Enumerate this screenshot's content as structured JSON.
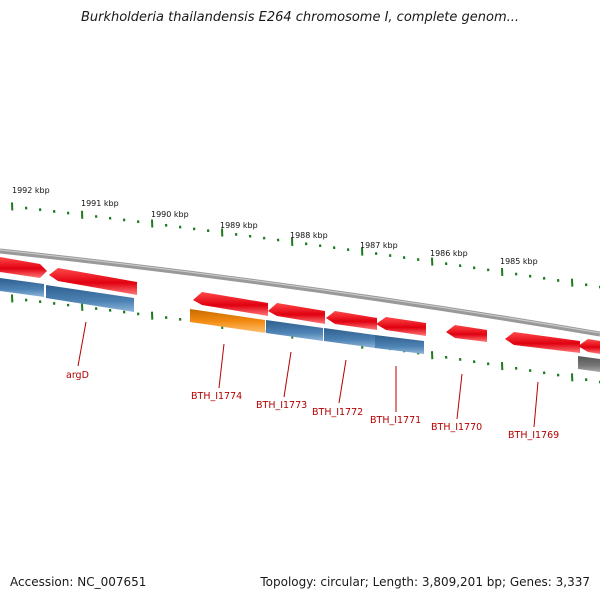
{
  "title": "Burkholderia thailandensis E264 chromosome I, complete genom...",
  "footer": {
    "accession": "Accession: NC_007651",
    "stats": "Topology: circular; Length: 3,809,201 bp; Genes: 3,337"
  },
  "colors": {
    "backbone": "#8a8a8a",
    "forward_gene": "#e8101a",
    "reverse_gene": "#4a7fb0",
    "highlighted_gene": "#f08a12",
    "gray_gene": "#6b6b6b",
    "tick": "#1d7a1d",
    "label": "#b30000"
  },
  "ticks": [
    {
      "label": "1992 kbp"
    },
    {
      "label": "1991 kbp"
    },
    {
      "label": "1990 kbp"
    },
    {
      "label": "1989 kbp"
    },
    {
      "label": "1988 kbp"
    },
    {
      "label": "1987 kbp"
    },
    {
      "label": "1986 kbp"
    },
    {
      "label": "1985 kbp"
    }
  ],
  "gene_labels": [
    {
      "name": "argD"
    },
    {
      "name": "BTH_I1774"
    },
    {
      "name": "BTH_I1773"
    },
    {
      "name": "BTH_I1772"
    },
    {
      "name": "BTH_I1771"
    },
    {
      "name": "BTH_I1770"
    },
    {
      "name": "BTH_I1769"
    }
  ]
}
